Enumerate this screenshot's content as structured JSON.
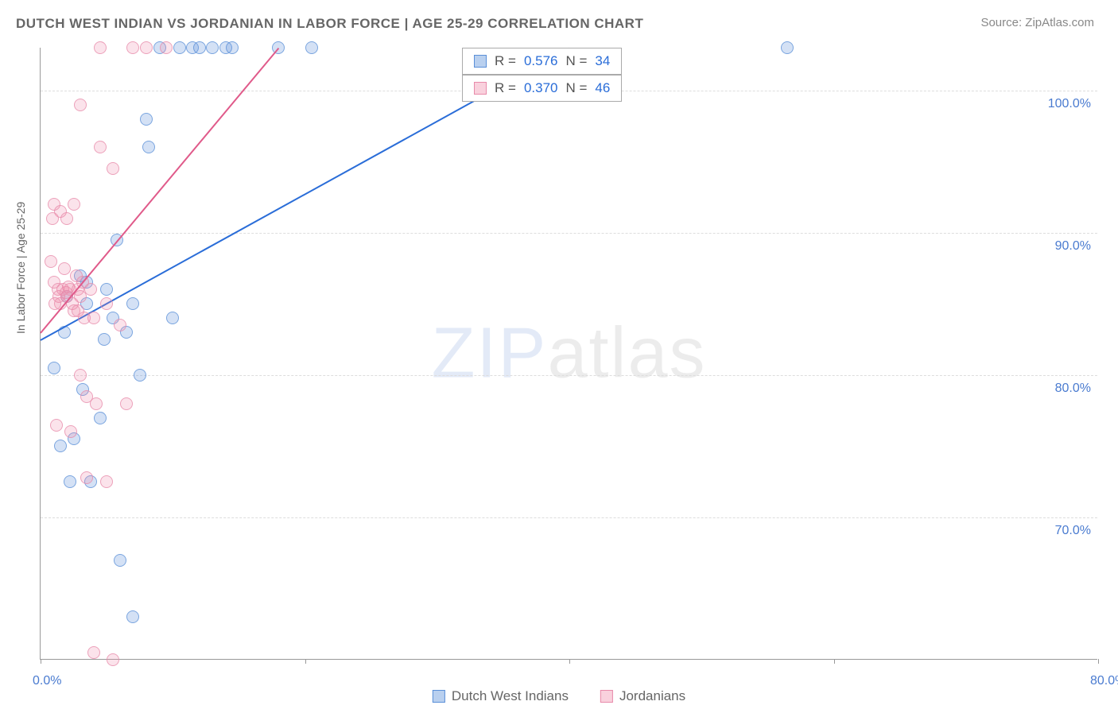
{
  "header": {
    "title": "DUTCH WEST INDIAN VS JORDANIAN IN LABOR FORCE | AGE 25-29 CORRELATION CHART",
    "source": "Source: ZipAtlas.com"
  },
  "chart": {
    "type": "scatter",
    "ylabel": "In Labor Force | Age 25-29",
    "xlim": [
      0,
      80
    ],
    "ylim": [
      60,
      103
    ],
    "background_color": "#ffffff",
    "grid_color": "#dddddd",
    "axis_color": "#999999",
    "label_color": "#4a7bd0",
    "yticks": [
      {
        "value": 70,
        "label": "70.0%"
      },
      {
        "value": 80,
        "label": "80.0%"
      },
      {
        "value": 90,
        "label": "90.0%"
      },
      {
        "value": 100,
        "label": "100.0%"
      }
    ],
    "xticks": [
      {
        "value": 0,
        "label": "0.0%"
      },
      {
        "value": 20,
        "label": ""
      },
      {
        "value": 40,
        "label": ""
      },
      {
        "value": 60,
        "label": ""
      },
      {
        "value": 80,
        "label": "80.0%"
      }
    ],
    "series": [
      {
        "name": "Dutch West Indians",
        "color_fill": "rgba(100,150,220,0.35)",
        "color_stroke": "#5a8fd8",
        "trend_color": "#2a6dd8",
        "trend": {
          "x0": 0,
          "y0": 82.5,
          "x1": 40,
          "y1": 103
        },
        "R": 0.576,
        "N": 34,
        "points": [
          [
            1.0,
            80.5
          ],
          [
            1.5,
            75.0
          ],
          [
            1.8,
            83.0
          ],
          [
            2.0,
            85.5
          ],
          [
            2.2,
            72.5
          ],
          [
            2.5,
            75.5
          ],
          [
            3.0,
            87.0
          ],
          [
            3.2,
            79.0
          ],
          [
            3.5,
            85.0
          ],
          [
            3.8,
            72.5
          ],
          [
            4.5,
            77.0
          ],
          [
            4.8,
            82.5
          ],
          [
            5.0,
            86.0
          ],
          [
            5.5,
            84.0
          ],
          [
            5.8,
            89.5
          ],
          [
            6.0,
            67.0
          ],
          [
            6.5,
            83.0
          ],
          [
            7.0,
            85.0
          ],
          [
            7.5,
            80.0
          ],
          [
            8.0,
            98.0
          ],
          [
            8.2,
            96.0
          ],
          [
            7.0,
            63.0
          ],
          [
            9.0,
            103.0
          ],
          [
            10.0,
            84.0
          ],
          [
            10.5,
            103.0
          ],
          [
            11.5,
            103.0
          ],
          [
            12.0,
            103.0
          ],
          [
            13.0,
            103.0
          ],
          [
            14.0,
            103.0
          ],
          [
            14.5,
            103.0
          ],
          [
            18.0,
            103.0
          ],
          [
            20.5,
            103.0
          ],
          [
            56.5,
            103.0
          ],
          [
            3.5,
            86.5
          ]
        ]
      },
      {
        "name": "Jordanians",
        "color_fill": "rgba(240,140,170,0.30)",
        "color_stroke": "#e88aaa",
        "trend_color": "#e05a8a",
        "trend": {
          "x0": 0,
          "y0": 83.0,
          "x1": 18,
          "y1": 103
        },
        "R": 0.37,
        "N": 46,
        "points": [
          [
            0.8,
            88.0
          ],
          [
            1.0,
            86.5
          ],
          [
            1.0,
            92.0
          ],
          [
            1.2,
            76.5
          ],
          [
            1.3,
            86.0
          ],
          [
            1.5,
            91.5
          ],
          [
            1.5,
            85.0
          ],
          [
            1.8,
            87.5
          ],
          [
            2.0,
            91.0
          ],
          [
            2.0,
            85.5
          ],
          [
            2.2,
            86.0
          ],
          [
            2.3,
            76.0
          ],
          [
            2.5,
            92.0
          ],
          [
            2.5,
            84.5
          ],
          [
            2.8,
            86.0
          ],
          [
            3.0,
            99.0
          ],
          [
            3.0,
            85.5
          ],
          [
            3.0,
            80.0
          ],
          [
            3.2,
            86.5
          ],
          [
            3.5,
            78.5
          ],
          [
            3.5,
            72.8
          ],
          [
            3.8,
            86.0
          ],
          [
            4.0,
            60.5
          ],
          [
            4.0,
            84.0
          ],
          [
            4.2,
            78.0
          ],
          [
            4.5,
            96.0
          ],
          [
            4.5,
            103.0
          ],
          [
            5.0,
            85.0
          ],
          [
            5.0,
            72.5
          ],
          [
            5.5,
            94.5
          ],
          [
            6.0,
            83.5
          ],
          [
            6.5,
            78.0
          ],
          [
            5.5,
            60.0
          ],
          [
            7.0,
            103.0
          ],
          [
            8.0,
            103.0
          ],
          [
            9.5,
            103.0
          ],
          [
            2.7,
            87.0
          ],
          [
            1.7,
            86.0
          ],
          [
            1.9,
            85.8
          ],
          [
            2.1,
            86.2
          ],
          [
            2.4,
            85.0
          ],
          [
            1.4,
            85.5
          ],
          [
            1.1,
            85.0
          ],
          [
            0.9,
            91.0
          ],
          [
            2.8,
            84.5
          ],
          [
            3.3,
            84.0
          ]
        ]
      }
    ],
    "stat_boxes": [
      {
        "series": 0,
        "text_parts": [
          "R = ",
          "0.576",
          "   N = ",
          "34"
        ]
      },
      {
        "series": 1,
        "text_parts": [
          "R = ",
          "0.370",
          "   N = ",
          "46"
        ]
      }
    ],
    "legend": [
      {
        "label": "Dutch West Indians",
        "swatch": "blue"
      },
      {
        "label": "Jordanians",
        "swatch": "pink"
      }
    ],
    "watermark": {
      "bold": "ZIP",
      "thin": "atlas"
    }
  }
}
